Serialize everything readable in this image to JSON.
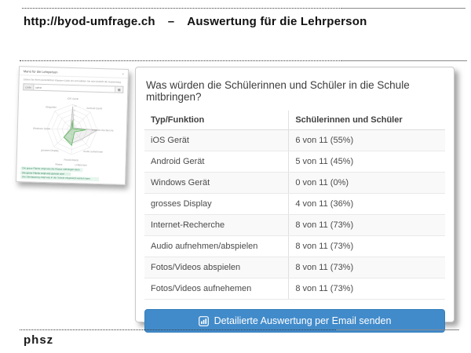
{
  "header": {
    "url": "http://byod-umfrage.ch",
    "dash": "–",
    "title": "Auswertung für die Lehrperson"
  },
  "thumbnail": {
    "window_title": "Menü für die Lehrperson",
    "description": "Geben Sie Ihren persönlichen Klassen-Code ein und wählen Sie eine Ansicht der Auswertung",
    "code_label": "Code:",
    "code_value": "uzh4r",
    "submit_icon": "▦",
    "radar": {
      "type": "radar",
      "max": 11,
      "categories": [
        "iOS Gerät",
        "Android Gerät",
        "Internet-Recherche",
        "Audio aufnehmen",
        "Fotos/Videos",
        "grosses Display",
        "Windows Gerät",
        "Abspielen"
      ],
      "series": [
        {
          "name": "Schülerinnen und Schüler",
          "color": "#c0c0c0",
          "fill": "rgba(170,170,170,0.18)",
          "values": [
            10,
            1,
            11,
            6,
            6,
            5,
            1,
            1
          ]
        },
        {
          "name": "Lehrperson",
          "color": "#5cb85c",
          "fill": "rgba(92,184,92,0.30)",
          "values": [
            4,
            0.5,
            6,
            1.5,
            7,
            5,
            0.5,
            0.5
          ]
        }
      ],
      "ticks": [
        2,
        4,
        6,
        8,
        10
      ]
    },
    "legend": [
      "Klasse",
      "Lehrperson"
    ],
    "notes": [
      "Die graue Fläche zeigt was die Klasse mitbringen kann",
      "Die grüne Fläche zeigt was genutzt wird",
      "Die Überlappung zeigt was in der Schule eingesetzt werden kann"
    ]
  },
  "panel": {
    "question": "Was würden die Schülerinnen und Schüler in die Schule mitbringen?",
    "table": {
      "headers": [
        "Typ/Funktion",
        "Schülerinnen und Schüler"
      ],
      "rows": [
        {
          "type": "iOS Gerät",
          "value": "6 von 11 (55%)"
        },
        {
          "type": "Android Gerät",
          "value": "5 von 11 (45%)"
        },
        {
          "type": "Windows Gerät",
          "value": "0 von 11 (0%)"
        },
        {
          "type": "grosses Display",
          "value": "4 von 11 (36%)"
        },
        {
          "type": "Internet-Recherche",
          "value": "8 von 11 (73%)"
        },
        {
          "type": "Audio aufnehmen/abspielen",
          "value": "8 von 11 (73%)"
        },
        {
          "type": "Fotos/Videos abspielen",
          "value": "8 von 11 (73%)"
        },
        {
          "type": "Fotos/Videos aufnehemen",
          "value": "8 von 11 (73%)"
        }
      ]
    },
    "button_label": "Detailierte Auswertung per Email senden"
  },
  "footer": {
    "logo": "phsz"
  },
  "colors": {
    "primary": "#428bca",
    "primary_border": "#357ebd",
    "note_green": "#e7f6ee",
    "series_green": "#5cb85c"
  }
}
